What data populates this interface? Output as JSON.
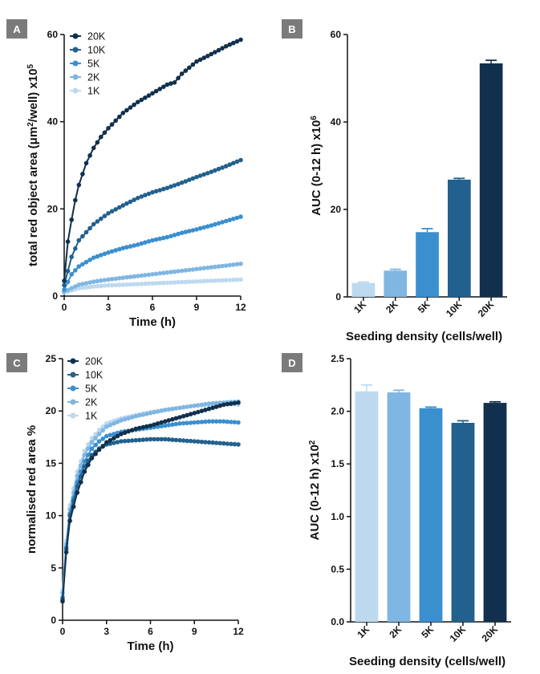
{
  "colors": {
    "20K": "#11304d",
    "10K": "#22608e",
    "5K": "#3a8fcf",
    "2K": "#7fb6e2",
    "1K": "#bcd9ef",
    "label_box": "#7b7b7b"
  },
  "chart_data": [
    {
      "panel": "A",
      "type": "line",
      "xlabel": "Time (h)",
      "ylabel": "total red object area (μm²/well) x10⁵",
      "ylabel_parts": {
        "main": "total red object area (μm",
        "sup1": "2",
        "mid": "/well) x10",
        "sup2": "5"
      },
      "xlim": [
        0,
        12
      ],
      "ylim": [
        0,
        60
      ],
      "xticks": [
        "0",
        "3",
        "6",
        "9",
        "12"
      ],
      "yticks": [
        "0",
        "20",
        "40",
        "60"
      ],
      "legend": [
        "20K",
        "10K",
        "5K",
        "2K",
        "1K"
      ],
      "series": [
        {
          "name": "20K",
          "x": [
            0,
            0.25,
            0.5,
            0.75,
            1,
            1.5,
            2,
            2.5,
            3,
            4,
            5,
            6,
            7,
            7.5,
            8,
            9,
            10,
            11,
            12
          ],
          "y": [
            3.5,
            12.5,
            17.5,
            22,
            25.5,
            30.5,
            34,
            36.5,
            38.5,
            42,
            44.5,
            46.5,
            48.5,
            49,
            51,
            53.8,
            55.5,
            57.3,
            58.8
          ]
        },
        {
          "name": "10K",
          "x": [
            0,
            0.5,
            1,
            2,
            3,
            4,
            5,
            6,
            7,
            8,
            9,
            10,
            11,
            12
          ],
          "y": [
            2.5,
            9,
            12.8,
            16.5,
            19,
            20.8,
            22.5,
            23.8,
            24.8,
            26,
            27.3,
            28.5,
            29.8,
            31.2
          ]
        },
        {
          "name": "5K",
          "x": [
            0,
            0.5,
            1,
            2,
            3,
            4,
            5,
            6,
            7,
            8,
            9,
            10,
            11,
            12
          ],
          "y": [
            1.5,
            5,
            6.8,
            8.8,
            10,
            11,
            11.8,
            12.8,
            13.5,
            14.5,
            15.3,
            16.2,
            17.2,
            18.2
          ]
        },
        {
          "name": "2K",
          "x": [
            0,
            1,
            2,
            3,
            4,
            5,
            6,
            7,
            8,
            9,
            10,
            11,
            12
          ],
          "y": [
            1,
            2.6,
            3.3,
            3.8,
            4.2,
            4.6,
            5,
            5.4,
            5.8,
            6.2,
            6.6,
            7,
            7.4
          ]
        },
        {
          "name": "1K",
          "x": [
            0,
            1,
            2,
            3,
            4,
            5,
            6,
            7,
            8,
            9,
            10,
            11,
            12
          ],
          "y": [
            0.8,
            1.8,
            2.2,
            2.45,
            2.6,
            2.75,
            2.9,
            3.05,
            3.2,
            3.35,
            3.5,
            3.65,
            3.8
          ]
        }
      ]
    },
    {
      "panel": "B",
      "type": "bar",
      "xlabel": "Seeding density (cells/well)",
      "ylabel": "AUC (0-12 h) x10⁶",
      "ylabel_parts": {
        "main": "AUC (0-12 h) x10",
        "sup": "6"
      },
      "categories": [
        "1K",
        "2K",
        "5K",
        "10K",
        "20K"
      ],
      "values": [
        3.2,
        6.0,
        14.8,
        26.8,
        53.4
      ],
      "errors": [
        0.2,
        0.3,
        0.8,
        0.3,
        0.7
      ],
      "ylim": [
        0,
        60
      ],
      "yticks": [
        "0",
        "20",
        "40",
        "60"
      ]
    },
    {
      "panel": "C",
      "type": "line",
      "xlabel": "Time (h)",
      "ylabel": "normalised red area %",
      "xlim": [
        0,
        12
      ],
      "ylim": [
        0,
        25
      ],
      "xticks": [
        "0",
        "3",
        "6",
        "9",
        "12"
      ],
      "yticks": [
        "0",
        "5",
        "10",
        "15",
        "20",
        "25"
      ],
      "legend": [
        "20K",
        "10K",
        "5K",
        "2K",
        "1K"
      ],
      "series": [
        {
          "name": "20K",
          "x": [
            0,
            0.25,
            0.5,
            1,
            1.5,
            2,
            2.5,
            3,
            4,
            5,
            6,
            7,
            8,
            9,
            10,
            11,
            12
          ],
          "y": [
            1.8,
            6.5,
            9.5,
            12.2,
            14.2,
            15.5,
            16.3,
            17.0,
            17.8,
            18.3,
            18.6,
            19.0,
            19.4,
            19.8,
            20.2,
            20.6,
            20.8
          ]
        },
        {
          "name": "10K",
          "x": [
            0,
            0.25,
            0.5,
            1,
            1.5,
            2,
            2.5,
            3,
            4,
            5,
            6,
            7,
            8,
            9,
            10,
            11,
            12
          ],
          "y": [
            2.0,
            6.8,
            10.0,
            12.8,
            14.7,
            15.8,
            16.4,
            16.8,
            17.1,
            17.2,
            17.3,
            17.3,
            17.2,
            17.1,
            17.0,
            16.9,
            16.8
          ]
        },
        {
          "name": "5K",
          "x": [
            0,
            0.25,
            0.5,
            1,
            1.5,
            2,
            2.5,
            3,
            4,
            5,
            6,
            7,
            8,
            9,
            10,
            11,
            12
          ],
          "y": [
            2.2,
            7.0,
            10.2,
            13.2,
            15.2,
            16.4,
            17.1,
            17.6,
            18.0,
            18.2,
            18.4,
            18.6,
            18.8,
            18.9,
            19.0,
            19.0,
            18.9
          ]
        },
        {
          "name": "2K",
          "x": [
            0,
            0.25,
            0.5,
            1,
            1.5,
            2,
            2.5,
            3,
            4,
            5,
            6,
            7,
            8,
            9,
            10,
            11,
            12
          ],
          "y": [
            2.6,
            7.3,
            10.6,
            13.8,
            15.8,
            17.0,
            17.8,
            18.5,
            19.1,
            19.5,
            19.8,
            20.1,
            20.3,
            20.5,
            20.7,
            20.8,
            20.9
          ]
        },
        {
          "name": "1K",
          "x": [
            0,
            0.25,
            0.5,
            1,
            1.5,
            2,
            2.5,
            3,
            4,
            5,
            6,
            7,
            8,
            9,
            10,
            11,
            12
          ],
          "y": [
            2.9,
            7.6,
            11.0,
            14.2,
            16.2,
            17.4,
            18.2,
            18.8,
            19.3,
            19.6,
            19.9,
            20.1,
            20.3,
            20.5,
            20.6,
            20.7,
            20.6
          ]
        }
      ]
    },
    {
      "panel": "D",
      "type": "bar",
      "xlabel": "Seeding density (cells/well)",
      "ylabel": "AUC (0-12 h) x10²",
      "ylabel_parts": {
        "main": "AUC (0-12 h) x10",
        "sup": "2"
      },
      "categories": [
        "1K",
        "2K",
        "5K",
        "10K",
        "20K"
      ],
      "values": [
        2.19,
        2.18,
        2.03,
        1.89,
        2.08
      ],
      "errors": [
        0.06,
        0.02,
        0.01,
        0.02,
        0.01
      ],
      "ylim": [
        0,
        2.5
      ],
      "yticks": [
        "0.0",
        "0.5",
        "1.0",
        "1.5",
        "2.0",
        "2.5"
      ]
    }
  ]
}
